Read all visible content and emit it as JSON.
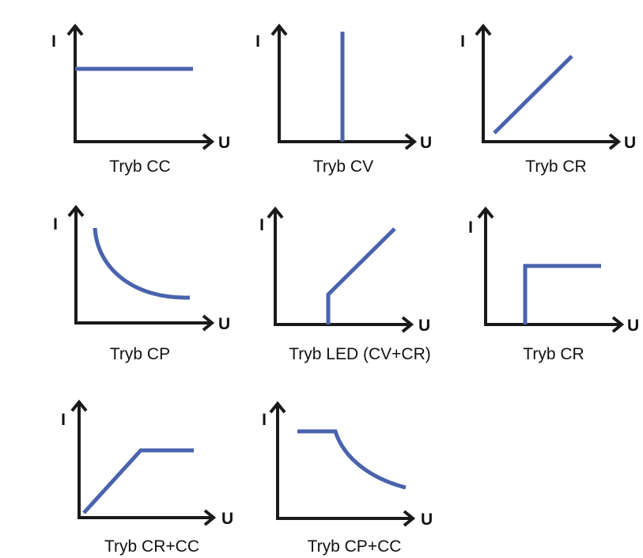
{
  "colors": {
    "axis": "#1a1a1a",
    "curve": "#4a63ad",
    "text": "#111111",
    "background": "#ffffff"
  },
  "axis_labels": {
    "y": "I",
    "x": "U"
  },
  "panels": [
    {
      "id": "cc",
      "title": "Tryb CC",
      "curve": "constant-current"
    },
    {
      "id": "cv",
      "title": "Tryb CV",
      "curve": "constant-voltage"
    },
    {
      "id": "cr1",
      "title": "Tryb CR",
      "curve": "constant-resistance"
    },
    {
      "id": "cp",
      "title": "Tryb CP",
      "curve": "constant-power"
    },
    {
      "id": "led",
      "title": "Tryb LED (CV+CR)",
      "curve": "led-cv-cr"
    },
    {
      "id": "cr2",
      "title": "Tryb CR",
      "curve": "step"
    },
    {
      "id": "crcc",
      "title": "Tryb CR+CC",
      "curve": "cr-plus-cc"
    },
    {
      "id": "cpcc",
      "title": "Tryb CP+CC",
      "curve": "cp-plus-cc"
    }
  ]
}
